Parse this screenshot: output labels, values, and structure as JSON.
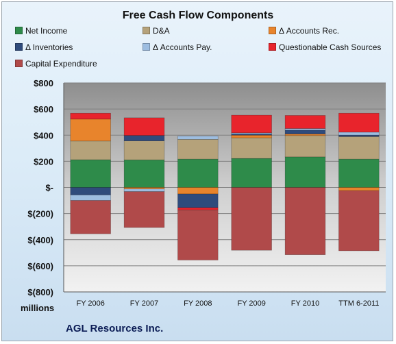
{
  "chart_data": {
    "type": "bar",
    "stacked": true,
    "title": "Free Cash Flow Components",
    "units_label": "millions",
    "company": "AGL Resources Inc.",
    "categories": [
      "FY 2006",
      "FY 2007",
      "FY 2008",
      "FY 2009",
      "FY 2010",
      "TTM 6-2011"
    ],
    "ylim": [
      -800,
      800
    ],
    "y_ticks": [
      800,
      600,
      400,
      200,
      0,
      -200,
      -400,
      -600,
      -800
    ],
    "y_tick_labels": [
      "$800",
      "$600",
      "$400",
      "$200",
      "$-",
      "$(200)",
      "$(400)",
      "$(600)",
      "$(800)"
    ],
    "grid": true,
    "legend_position": "top",
    "series": [
      {
        "name": "Net Income",
        "color": "#2e8b4a",
        "values": [
          212,
          211,
          217,
          222,
          234,
          217
        ]
      },
      {
        "name": "D&A",
        "color": "#b5a27a",
        "values": [
          143,
          145,
          151,
          158,
          163,
          172
        ]
      },
      {
        "name": "Δ Accounts Rec.",
        "color": "#e8842c",
        "values": [
          168,
          -12,
          -50,
          20,
          12,
          -25
        ]
      },
      {
        "name": "Δ Inventories",
        "color": "#2f4b7c",
        "values": [
          -58,
          42,
          -105,
          10,
          30,
          12
        ]
      },
      {
        "name": "Δ Accounts Pay.",
        "color": "#9dbde0",
        "values": [
          -42,
          -20,
          25,
          8,
          12,
          22
        ]
      },
      {
        "name": "Questionable Cash Sources",
        "color": "#e8242c",
        "values": [
          45,
          135,
          -17,
          135,
          100,
          145
        ]
      },
      {
        "name": "Capital Expenditure",
        "color": "#b04a4a",
        "values": [
          -255,
          -275,
          -384,
          -481,
          -515,
          -460
        ]
      }
    ]
  }
}
